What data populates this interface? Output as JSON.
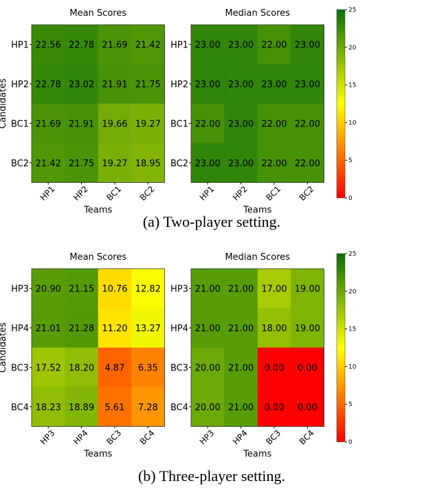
{
  "colormap": {
    "stops": [
      [
        0,
        "#ff0000"
      ],
      [
        12.5,
        "#ffff00"
      ],
      [
        25,
        "#0a6e0a"
      ]
    ]
  },
  "chart_data": [
    {
      "type": "heatmap",
      "title": "Mean Scores",
      "xlabel": "Teams",
      "ylabel": "Candidates",
      "x": [
        "HP1",
        "HP2",
        "BC1",
        "BC2"
      ],
      "y": [
        "HP1",
        "HP2",
        "BC1",
        "BC2"
      ],
      "values": [
        [
          "22.56",
          "22.78",
          "21.69",
          "21.42"
        ],
        [
          "22.78",
          "23.02",
          "21.91",
          "21.75"
        ],
        [
          "21.69",
          "21.91",
          "19.66",
          "19.27"
        ],
        [
          "21.42",
          "21.75",
          "19.27",
          "18.95"
        ]
      ]
    },
    {
      "type": "heatmap",
      "title": "Median Scores",
      "xlabel": "Teams",
      "ylabel": "",
      "x": [
        "HP1",
        "HP2",
        "BC1",
        "BC2"
      ],
      "y": [
        "HP1",
        "HP2",
        "BC1",
        "BC2"
      ],
      "values": [
        [
          "23.00",
          "23.00",
          "22.00",
          "23.00"
        ],
        [
          "23.00",
          "23.00",
          "23.00",
          "23.00"
        ],
        [
          "22.00",
          "23.00",
          "22.00",
          "22.00"
        ],
        [
          "23.00",
          "23.00",
          "22.00",
          "22.00"
        ]
      ]
    },
    {
      "type": "heatmap",
      "title": "Mean Scores",
      "xlabel": "Teams",
      "ylabel": "Candidates",
      "x": [
        "HP3",
        "HP4",
        "BC3",
        "BC4"
      ],
      "y": [
        "HP3",
        "HP4",
        "BC3",
        "BC4"
      ],
      "values": [
        [
          "20.90",
          "21.15",
          "10.76",
          "12.82"
        ],
        [
          "21.01",
          "21.28",
          "11.20",
          "13.27"
        ],
        [
          "17.52",
          "18.20",
          "4.87",
          "6.35"
        ],
        [
          "18.23",
          "18.89",
          "5.61",
          "7.28"
        ]
      ]
    },
    {
      "type": "heatmap",
      "title": "Median Scores",
      "xlabel": "Teams",
      "ylabel": "",
      "x": [
        "HP3",
        "HP4",
        "BC3",
        "BC4"
      ],
      "y": [
        "HP3",
        "HP4",
        "BC3",
        "BC4"
      ],
      "values": [
        [
          "21.00",
          "21.00",
          "17.00",
          "19.00"
        ],
        [
          "21.00",
          "21.00",
          "18.00",
          "19.00"
        ],
        [
          "20.00",
          "21.00",
          "0.00",
          "0.00"
        ],
        [
          "20.00",
          "21.00",
          "0.00",
          "0.00"
        ]
      ]
    }
  ],
  "colorbar": {
    "range": [
      0,
      25
    ],
    "ticks": [
      "0",
      "5",
      "10",
      "15",
      "20",
      "25"
    ]
  },
  "captions": [
    "(a) Two-player setting.",
    "(b) Three-player setting."
  ]
}
